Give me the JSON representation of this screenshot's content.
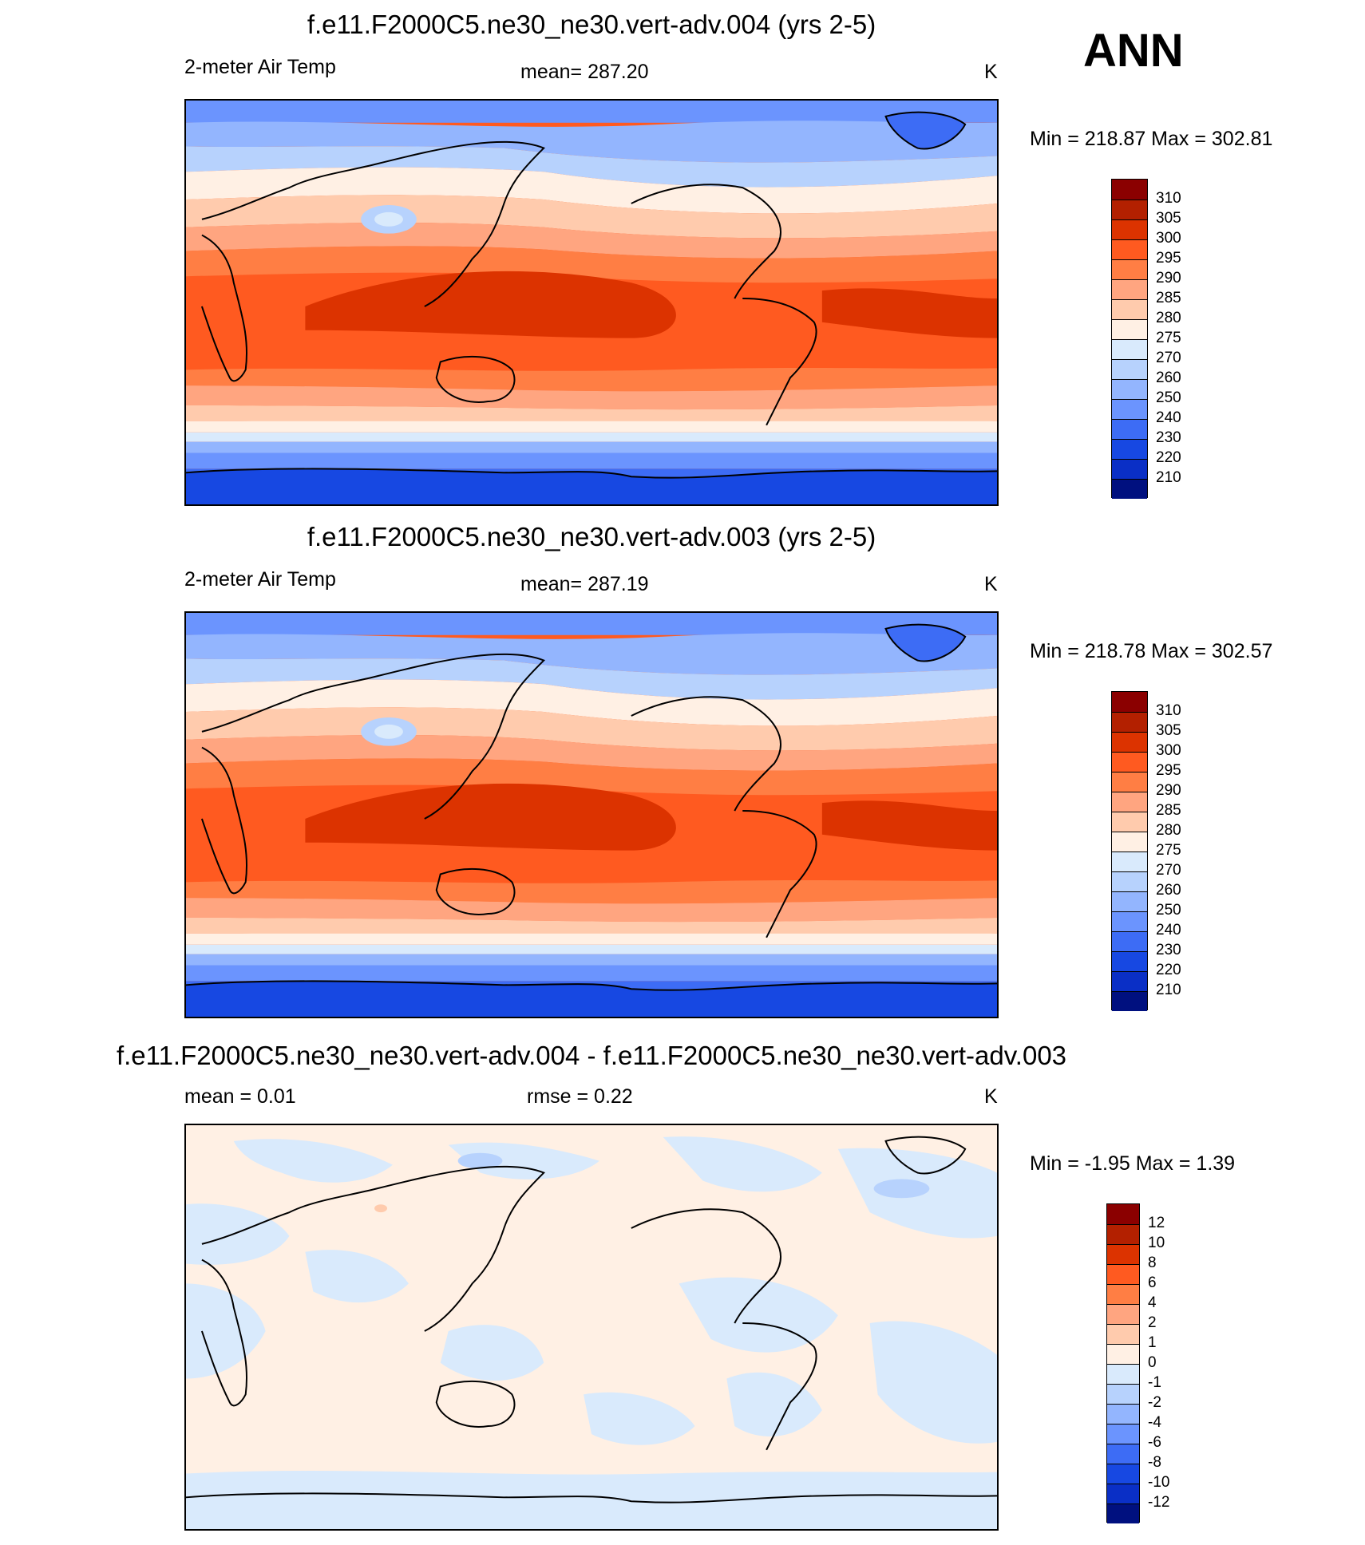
{
  "season": "ANN",
  "panels": [
    {
      "title": "f.e11.F2000C5.ne30_ne30.vert-adv.004 (yrs 2-5)",
      "left_label": "2-meter Air Temp",
      "center_label": "mean= 287.20",
      "units": "K",
      "minmax": "Min = 218.87 Max = 302.81",
      "kind": "absolute"
    },
    {
      "title": "f.e11.F2000C5.ne30_ne30.vert-adv.003 (yrs 2-5)",
      "left_label": "2-meter Air Temp",
      "center_label": "mean= 287.19",
      "units": "K",
      "minmax": "Min = 218.78 Max = 302.57",
      "kind": "absolute"
    },
    {
      "title": "f.e11.F2000C5.ne30_ne30.vert-adv.004 - f.e11.F2000C5.ne30_ne30.vert-adv.003",
      "left_label": "mean =   0.01",
      "center_label": "rmse =   0.22",
      "units": "K",
      "minmax": "Min =  -1.95 Max =   1.39",
      "kind": "difference"
    }
  ],
  "colorbars": {
    "absolute": {
      "labels": [
        "310",
        "305",
        "300",
        "295",
        "290",
        "285",
        "280",
        "275",
        "270",
        "260",
        "250",
        "240",
        "230",
        "220",
        "210"
      ],
      "colors": [
        "#8b0000",
        "#b32000",
        "#dc3300",
        "#ff5a20",
        "#ff7e44",
        "#ffa580",
        "#ffcbad",
        "#fff0e4",
        "#d9eafc",
        "#b7d2fd",
        "#93b5fe",
        "#6b94fe",
        "#3d6cf5",
        "#1748e2",
        "#0a2fc6",
        "#00107f"
      ]
    },
    "difference": {
      "labels": [
        "12",
        "10",
        "8",
        "6",
        "4",
        "2",
        "1",
        "0",
        "-1",
        "-2",
        "-4",
        "-6",
        "-8",
        "-10",
        "-12"
      ],
      "colors": [
        "#8b0000",
        "#b32000",
        "#dc3300",
        "#ff5a20",
        "#ff7e44",
        "#ffa580",
        "#ffcbad",
        "#fff0e4",
        "#d9eafc",
        "#b7d2fd",
        "#93b5fe",
        "#6b94fe",
        "#3d6cf5",
        "#1748e2",
        "#0a2fc6",
        "#00107f"
      ]
    }
  },
  "map_palette": {
    "deep_blue": "#1748e2",
    "blue": "#3d6cf5",
    "mid_blue": "#6b94fe",
    "light_blue": "#93b5fe",
    "pale_blue": "#b7d2fd",
    "ice": "#d9eafc",
    "cream": "#fff0e4",
    "peach": "#ffcbad",
    "salmon": "#ffa580",
    "orange": "#ff7e44",
    "red_orange": "#ff5a20",
    "red": "#dc3300",
    "diff_warm": "#fff0e4",
    "diff_cool": "#d9eafc",
    "diff_mid_blue": "#b7d2fd"
  }
}
